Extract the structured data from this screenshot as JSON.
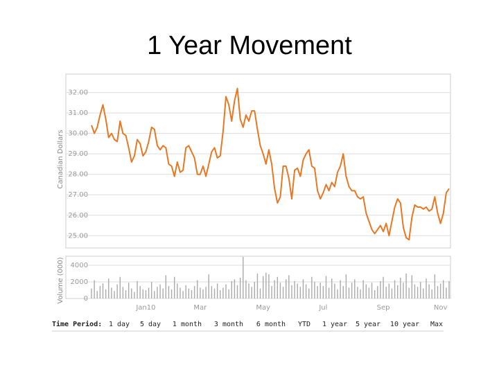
{
  "title": "1 Year Movement",
  "time_period": {
    "label": "Time Period:",
    "options": [
      "1 day",
      "5 day",
      "1 month",
      "3 month",
      "6 month",
      "YTD",
      "1 year",
      "5 year",
      "10 year",
      "Max"
    ],
    "active": 6
  },
  "chart_data": [
    {
      "type": "line",
      "y_label": "Canadian Dollars",
      "color": "#e87722",
      "grid": true,
      "ylim": [
        24.4,
        32.9
      ],
      "yticks": [
        {
          "value": 25,
          "label": "25.00"
        },
        {
          "value": 26,
          "label": "26.00"
        },
        {
          "value": 27,
          "label": "27.00"
        },
        {
          "value": 28,
          "label": "28.00"
        },
        {
          "value": 29,
          "label": "29.00"
        },
        {
          "value": 30,
          "label": "30.00"
        },
        {
          "value": 31,
          "label": "31.00"
        },
        {
          "value": 32,
          "label": "32.00"
        }
      ],
      "values": [
        30.4,
        30.0,
        30.3,
        30.9,
        31.4,
        30.7,
        29.8,
        30.0,
        29.7,
        29.6,
        30.6,
        30.0,
        29.9,
        29.3,
        28.6,
        28.9,
        29.7,
        29.5,
        28.9,
        29.1,
        29.6,
        30.3,
        30.2,
        29.4,
        29.2,
        29.4,
        29.3,
        28.5,
        28.4,
        27.9,
        28.6,
        28.1,
        28.2,
        29.3,
        29.4,
        29.1,
        28.8,
        28.0,
        28.0,
        28.4,
        27.9,
        28.5,
        29.1,
        29.3,
        28.8,
        28.9,
        30.1,
        31.8,
        31.4,
        30.6,
        31.6,
        32.2,
        30.7,
        30.3,
        30.9,
        30.6,
        31.1,
        31.1,
        30.2,
        29.4,
        29.0,
        28.5,
        29.2,
        28.5,
        27.3,
        26.6,
        26.9,
        28.4,
        28.4,
        27.8,
        26.8,
        28.2,
        28.3,
        27.9,
        28.7,
        29.0,
        29.2,
        28.4,
        28.3,
        27.2,
        26.8,
        27.1,
        27.5,
        27.2,
        27.6,
        27.4,
        28.1,
        28.4,
        29.0,
        27.9,
        27.4,
        27.2,
        27.2,
        26.9,
        26.8,
        26.9,
        26.1,
        25.7,
        25.3,
        25.1,
        25.3,
        25.5,
        25.2,
        25.6,
        25.0,
        25.7,
        26.4,
        26.8,
        26.6,
        25.4,
        24.9,
        24.8,
        25.9,
        26.5,
        26.4,
        26.4,
        26.3,
        26.4,
        26.2,
        26.3,
        26.9,
        26.1,
        25.6,
        26.1,
        27.1,
        27.3
      ]
    },
    {
      "type": "bar",
      "y_label": "Volume (000)",
      "color": "#aaaaaa",
      "ylim": [
        0,
        5080
      ],
      "yticks": [
        0,
        2000,
        4000
      ],
      "categories": [
        null,
        null,
        null,
        null,
        null,
        null,
        null,
        null,
        null,
        null,
        null,
        null,
        null,
        null,
        null,
        null,
        null,
        null,
        null,
        "Jan10",
        null,
        null,
        null,
        null,
        null,
        null,
        null,
        null,
        null,
        null,
        null,
        null,
        null,
        null,
        null,
        null,
        null,
        null,
        "Mar",
        null,
        null,
        null,
        null,
        null,
        null,
        null,
        null,
        null,
        null,
        null,
        null,
        null,
        null,
        null,
        null,
        null,
        null,
        null,
        null,
        null,
        "May",
        null,
        null,
        null,
        null,
        null,
        null,
        null,
        null,
        null,
        null,
        null,
        null,
        null,
        null,
        null,
        null,
        null,
        null,
        null,
        null,
        "Jul",
        null,
        null,
        null,
        null,
        null,
        null,
        null,
        null,
        null,
        null,
        null,
        null,
        null,
        null,
        null,
        null,
        null,
        null,
        null,
        null,
        "Sep",
        null,
        null,
        null,
        null,
        null,
        null,
        null,
        null,
        null,
        null,
        null,
        null,
        null,
        null,
        null,
        null,
        null,
        null,
        null,
        "Nov",
        null,
        null,
        null
      ],
      "values": [
        1200,
        2200,
        900,
        1500,
        1800,
        1100,
        2400,
        1300,
        900,
        1700,
        2600,
        1400,
        1000,
        1900,
        1200,
        800,
        2100,
        1500,
        1100,
        1000,
        1300,
        2000,
        900,
        1400,
        1700,
        1200,
        2800,
        1500,
        1100,
        2600,
        1800,
        1300,
        900,
        1600,
        1200,
        1000,
        1500,
        2200,
        1300,
        1100,
        1400,
        2900,
        1500,
        1200,
        1800,
        1000,
        1300,
        1700,
        1100,
        2100,
        2300,
        1600,
        2500,
        5000,
        2200,
        1800,
        1400,
        2000,
        3000,
        1200,
        2700,
        3100,
        2900,
        1500,
        2200,
        2600,
        1900,
        1400,
        2300,
        2800,
        1600,
        2100,
        1800,
        1400,
        2300,
        1700,
        1200,
        2600,
        2000,
        1500,
        1900,
        1500,
        2700,
        1300,
        2400,
        1800,
        1100,
        2200,
        1500,
        2900,
        1300,
        1900,
        2300,
        1400,
        1100,
        2200,
        1700,
        1300,
        1900,
        1000,
        1500,
        2100,
        2600,
        1400,
        1800,
        1200,
        2200,
        1600,
        2500,
        1900,
        3000,
        1300,
        2800,
        1700,
        1400,
        2000,
        1200,
        2400,
        1700,
        1100,
        2900,
        1500,
        1800,
        2200,
        1300,
        2100
      ]
    }
  ]
}
